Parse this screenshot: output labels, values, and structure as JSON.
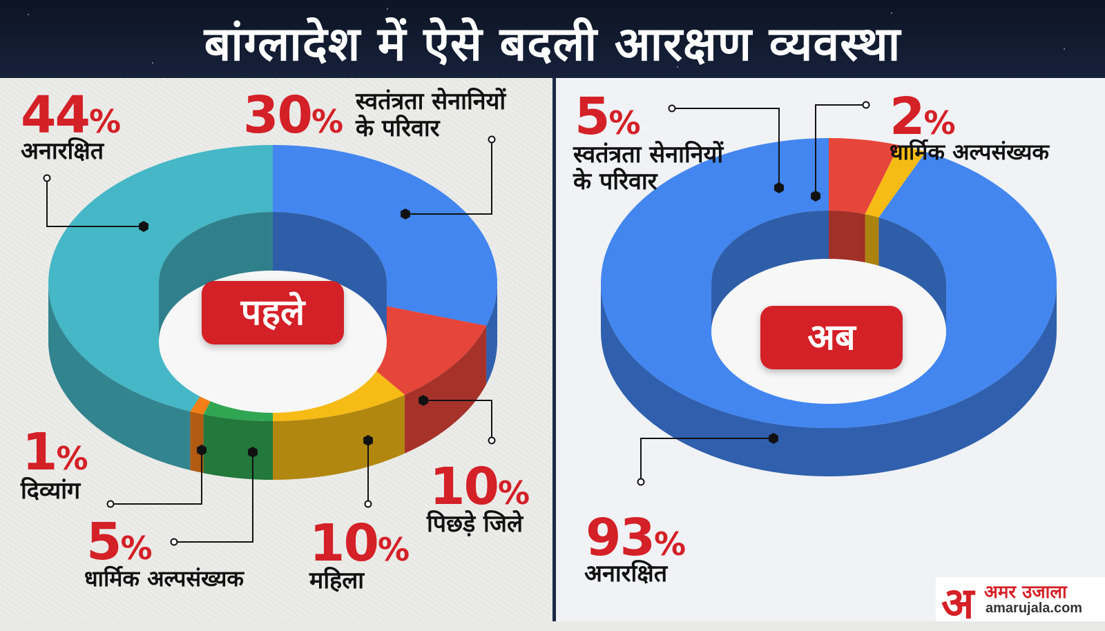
{
  "header": {
    "title": "बांग्लादेश में ऐसे बदली आरक्षण व्यवस्था"
  },
  "colors": {
    "teal": "#45b7c6",
    "blue": "#4386f0",
    "red": "#e6453a",
    "yellow": "#f6bb15",
    "green": "#31a652",
    "orange": "#f57f17",
    "accent_red": "#d42027"
  },
  "chart_data": [
    {
      "type": "pie",
      "subtype": "donut-3d",
      "title": "पहले",
      "slices": [
        {
          "label": "स्वतंत्रता सेनानियों के परिवार",
          "value": 30,
          "color": "#4386f0"
        },
        {
          "label": "पिछड़े जिले",
          "value": 10,
          "color": "#e6453a"
        },
        {
          "label": "महिला",
          "value": 10,
          "color": "#f6bb15"
        },
        {
          "label": "धार्मिक अल्पसंख्यक",
          "value": 5,
          "color": "#31a652"
        },
        {
          "label": "दिव्यांग",
          "value": 1,
          "color": "#f57f17"
        },
        {
          "label": "अनारक्षित",
          "value": 44,
          "color": "#45b7c6"
        }
      ]
    },
    {
      "type": "pie",
      "subtype": "donut-3d",
      "title": "अब",
      "slices": [
        {
          "label": "स्वतंत्रता सेनानियों के परिवार",
          "value": 5,
          "color": "#e6453a"
        },
        {
          "label": "धार्मिक अल्पसंख्यक",
          "value": 2,
          "color": "#f6bb15"
        },
        {
          "label": "अनारक्षित",
          "value": 93,
          "color": "#4386f0"
        }
      ]
    }
  ],
  "labels_before": {
    "unreserved_pct": "44",
    "unreserved": "अनारक्षित",
    "freedom_pct": "30",
    "freedom_line1": "स्वतंत्रता सेनानियों",
    "freedom_line2": "के परिवार",
    "disabled_pct": "1",
    "disabled": "दिव्यांग",
    "religious_pct": "5",
    "religious": "धार्मिक अल्पसंख्यक",
    "women_pct": "10",
    "women": "महिला",
    "backward_pct": "10",
    "backward": "पिछड़े जिले"
  },
  "labels_after": {
    "freedom_pct": "5",
    "freedom_line1": "स्वतंत्रता सेनानियों",
    "freedom_line2": "के परिवार",
    "religious_pct": "2",
    "religious": "धार्मिक अल्पसंख्यक",
    "unreserved_pct": "93",
    "unreserved": "अनारक्षित"
  },
  "percent_sign": "%",
  "logo": {
    "glyph": "अ",
    "name": "अमर उजाला",
    "url": "amarujala.com"
  }
}
